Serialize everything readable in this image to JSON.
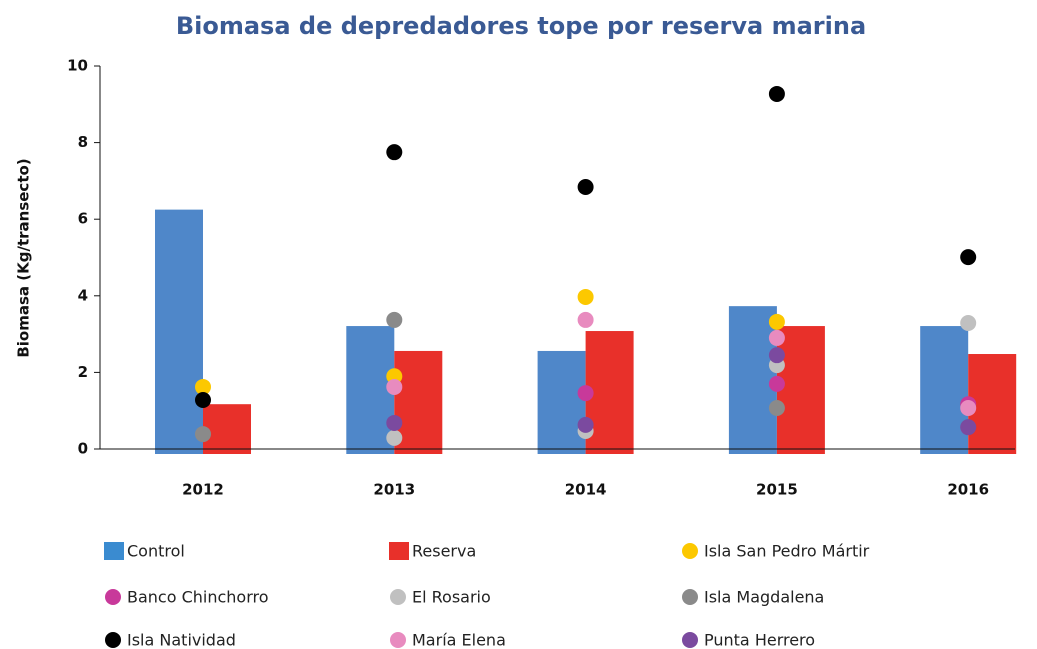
{
  "chart_data": {
    "type": "bar",
    "title": "Biomasa de depredadores tope por reserva marina",
    "y_label": "Biomasa (Kg/transecto)",
    "categories": [
      "2012",
      "2013",
      "2014",
      "2015",
      "2016"
    ],
    "ylim": [
      0,
      10
    ],
    "yticks": [
      0,
      2,
      4,
      6,
      8,
      10
    ],
    "series": [
      {
        "name": "Control",
        "type": "bar",
        "color": "#4f87c9",
        "legend_color": "#3a8bd0",
        "values": [
          6.25,
          3.21,
          2.56,
          3.73,
          3.21
        ]
      },
      {
        "name": "Reserva",
        "type": "bar",
        "color": "#e8302a",
        "values": [
          1.17,
          2.56,
          3.08,
          3.21,
          2.48
        ]
      },
      {
        "name": "Isla San Pedro Mártir",
        "type": "scatter",
        "color": "#fcc800",
        "values": [
          1.62,
          1.9,
          3.97,
          3.32,
          null
        ]
      },
      {
        "name": "Banco Chinchorro",
        "type": "scatter",
        "color": "#c8399a",
        "values": [
          null,
          null,
          1.46,
          1.7,
          1.17
        ]
      },
      {
        "name": "El Rosario",
        "type": "scatter",
        "color": "#c0c0c0",
        "values": [
          null,
          0.29,
          0.47,
          2.19,
          3.29
        ]
      },
      {
        "name": "Isla Magdalena",
        "type": "scatter",
        "color": "#8a8a8a",
        "values": [
          0.39,
          3.37,
          null,
          1.07,
          null
        ]
      },
      {
        "name": "Isla Natividad",
        "type": "scatter",
        "color": "#000000",
        "values": [
          1.28,
          7.75,
          6.84,
          9.27,
          5.01
        ]
      },
      {
        "name": "María Elena",
        "type": "scatter",
        "color": "#e88bbf",
        "values": [
          null,
          1.62,
          3.37,
          2.9,
          1.07
        ]
      },
      {
        "name": "Punta Herrero",
        "type": "scatter",
        "color": "#7b4a9f",
        "values": [
          null,
          0.68,
          0.63,
          2.45,
          0.57
        ]
      }
    ]
  }
}
